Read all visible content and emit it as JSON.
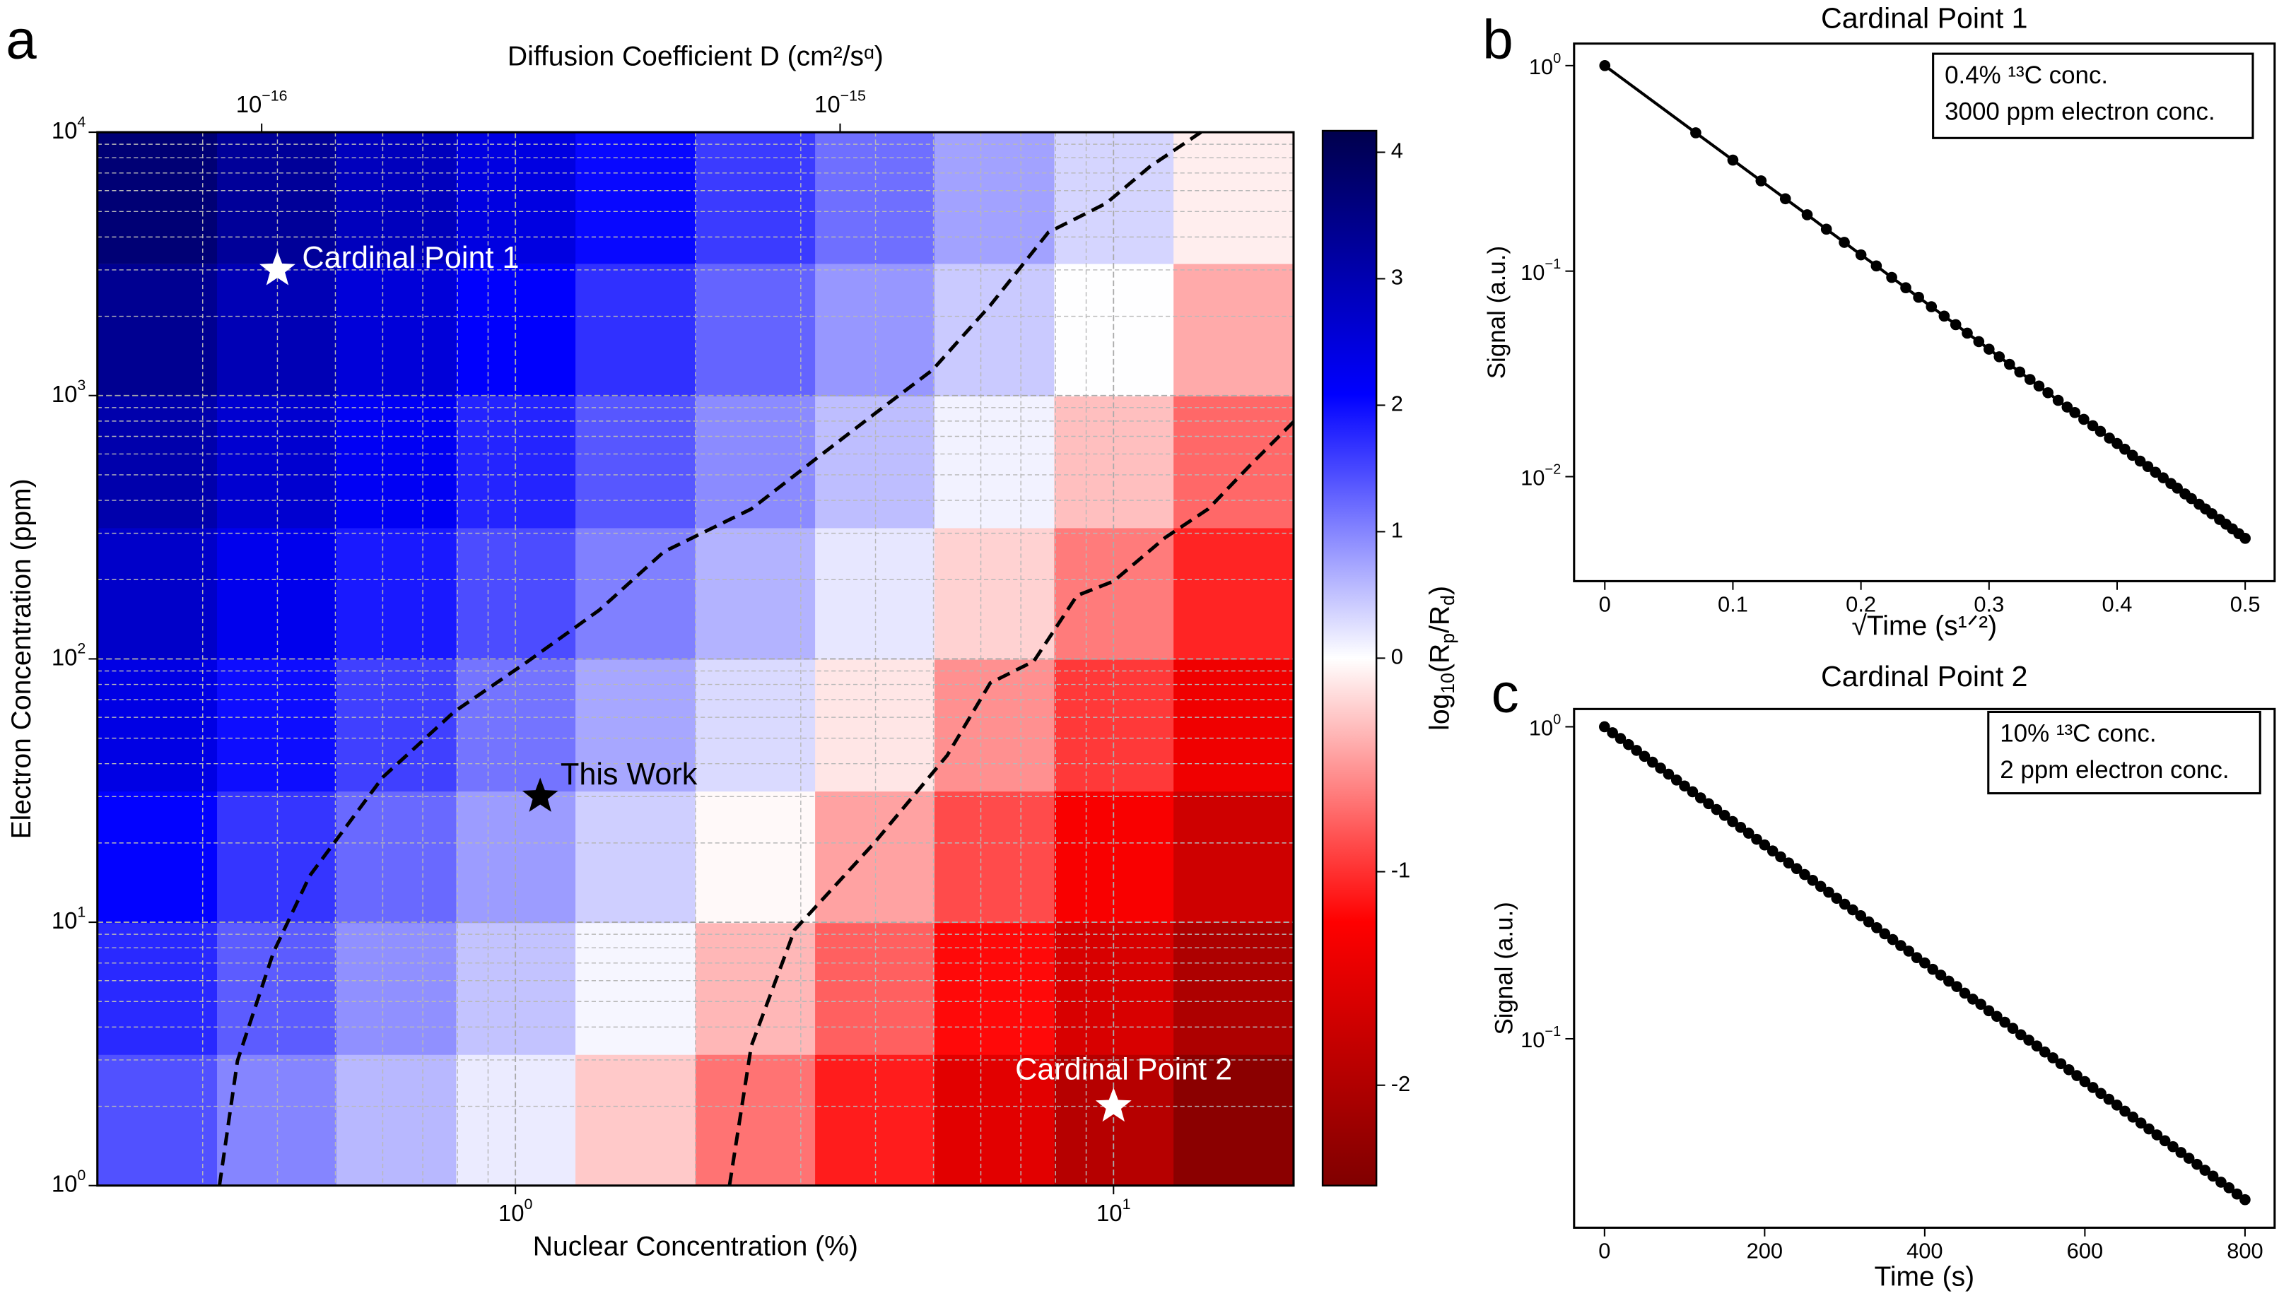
{
  "chart_data": [
    {
      "type": "heatmap",
      "panel_label": "a",
      "xlabel": "Nuclear Concentration (%)",
      "ylabel": "Electron Concentration (ppm)",
      "x2label": "Diffusion Coefficient D (cm²/sᵅ)",
      "xscale": "log",
      "yscale": "log",
      "xlim": [
        0.2,
        20
      ],
      "ylim": [
        1,
        10000
      ],
      "xticks": [
        {
          "value": 1,
          "label": "10",
          "exponent": "0"
        },
        {
          "value": 10,
          "label": "10",
          "exponent": "1"
        }
      ],
      "yticks": [
        {
          "value": 1,
          "label": "10",
          "exponent": "0"
        },
        {
          "value": 10,
          "label": "10",
          "exponent": "1"
        },
        {
          "value": 100,
          "label": "10",
          "exponent": "2"
        },
        {
          "value": 1000,
          "label": "10",
          "exponent": "3"
        },
        {
          "value": 10000,
          "label": "10",
          "exponent": "4"
        }
      ],
      "xminorticks": [
        0.3,
        0.4,
        0.5,
        0.6,
        0.7,
        0.8,
        0.9,
        2,
        3,
        4,
        5,
        6,
        7,
        8,
        9
      ],
      "yminorticks": [
        2,
        3,
        4,
        5,
        6,
        7,
        8,
        9,
        20,
        30,
        40,
        50,
        60,
        70,
        80,
        90,
        200,
        300,
        400,
        500,
        600,
        700,
        800,
        900,
        2000,
        3000,
        4000,
        5000,
        6000,
        7000,
        8000,
        9000
      ],
      "grid": true,
      "x2lim": [
        5.2e-17,
        6.08e-15
      ],
      "x2ticks": [
        {
          "value": 1e-16,
          "label": "10",
          "exponent": "−16"
        },
        {
          "value": 1e-15,
          "label": "10",
          "exponent": "−15"
        }
      ],
      "xbins": [
        0.2,
        0.317,
        0.502,
        0.796,
        1.26,
        2,
        3.17,
        5.02,
        7.96,
        12.6,
        20
      ],
      "ybins": [
        1,
        3.16,
        10,
        31.6,
        100,
        316,
        1000,
        3160,
        10000
      ],
      "z": [
        [
          1.42,
          1.0,
          0.58,
          0.16,
          -0.26,
          -0.68,
          -1.1,
          -1.52,
          -1.94,
          -2.36
        ],
        [
          1.75,
          1.33,
          0.91,
          0.49,
          0.07,
          -0.35,
          -0.77,
          -1.19,
          -1.61,
          -2.03
        ],
        [
          2.07,
          1.65,
          1.23,
          0.81,
          0.39,
          -0.03,
          -0.45,
          -0.87,
          -1.29,
          -1.71
        ],
        [
          2.4,
          1.98,
          1.56,
          1.14,
          0.72,
          0.3,
          -0.12,
          -0.54,
          -0.96,
          -1.38
        ],
        [
          2.72,
          2.3,
          1.88,
          1.46,
          1.04,
          0.62,
          0.2,
          -0.22,
          -0.64,
          -1.06
        ],
        [
          3.05,
          2.63,
          2.21,
          1.79,
          1.37,
          0.95,
          0.53,
          0.11,
          -0.31,
          -0.73
        ],
        [
          3.37,
          2.95,
          2.53,
          2.11,
          1.69,
          1.27,
          0.85,
          0.43,
          0.01,
          -0.41
        ],
        [
          3.7,
          3.28,
          2.86,
          2.44,
          2.02,
          1.6,
          1.18,
          0.76,
          0.34,
          -0.08
        ]
      ],
      "colormap": "seismic_r",
      "clim": [
        -2.47,
        4.17
      ],
      "norm_center": 0,
      "colorbar_ticks": [
        -2,
        -1,
        0,
        1,
        2,
        3,
        4
      ],
      "colorbar_label": [
        "log",
        "10",
        "(R",
        "p",
        "/R",
        "d",
        ")"
      ],
      "contours": [
        {
          "color": "#000000",
          "x": [
            0.32,
            0.343,
            0.394,
            0.453,
            0.6,
            0.79,
            1.05,
            1.38,
            1.77,
            2.48,
            3.19,
            3.98,
            4.98,
            6.22,
            7.78,
            9.72,
            11.5,
            14.0
          ],
          "y": [
            1,
            2.98,
            7.7,
            15,
            35.5,
            63,
            98,
            153,
            255,
            371,
            578,
            851,
            1250,
            2200,
            4170,
            5370,
            7400,
            10000
          ]
        },
        {
          "color": "#000000",
          "x": [
            2.28,
            2.48,
            2.93,
            3.98,
            5.27,
            6.22,
            7.36,
            8.69,
            10,
            12.2,
            14.4,
            17.0,
            20
          ],
          "y": [
            1,
            3.39,
            9.35,
            20,
            43,
            81,
            98,
            174,
            197,
            289,
            371,
            550,
            795
          ]
        }
      ],
      "markers": [
        {
          "name": "Cardinal Point 1",
          "x": 0.4,
          "y": 3000,
          "color": "#ffffff"
        },
        {
          "name": "This Work",
          "x": 1.1,
          "y": 30,
          "color": "#000000"
        },
        {
          "name": "Cardinal Point 2",
          "x": 10,
          "y": 2,
          "color": "#ffffff"
        }
      ]
    },
    {
      "type": "line",
      "panel_label": "b",
      "title": "Cardinal Point 1",
      "xlabel": "√Time (s¹ᐟ²)",
      "ylabel": "Signal (a.u.)",
      "yscale": "log",
      "xlim": [
        -0.024,
        0.523
      ],
      "ylim": [
        0.0031,
        1.28
      ],
      "xticks": [
        0,
        0.1,
        0.2,
        0.3,
        0.4,
        0.5
      ],
      "yticks": [
        {
          "value": 1,
          "label": "10",
          "exponent": "0"
        },
        {
          "value": 0.1,
          "label": "10",
          "exponent": "−1"
        },
        {
          "value": 0.01,
          "label": "10",
          "exponent": "−2"
        }
      ],
      "annotation": [
        "0.4% ¹³C conc.",
        "3000 ppm electron conc."
      ],
      "x": [
        0,
        0.071,
        0.1,
        0.122,
        0.141,
        0.158,
        0.173,
        0.187,
        0.2,
        0.212,
        0.224,
        0.235,
        0.245,
        0.255,
        0.265,
        0.274,
        0.283,
        0.292,
        0.3,
        0.308,
        0.316,
        0.324,
        0.332,
        0.339,
        0.346,
        0.354,
        0.361,
        0.367,
        0.374,
        0.381,
        0.387,
        0.394,
        0.4,
        0.406,
        0.412,
        0.418,
        0.424,
        0.43,
        0.436,
        0.442,
        0.447,
        0.453,
        0.458,
        0.464,
        0.469,
        0.474,
        0.48,
        0.485,
        0.49,
        0.495,
        0.5
      ],
      "series": [
        {
          "color": "#000000",
          "values": [
            1,
            0.471,
            0.347,
            0.275,
            0.225,
            0.188,
            0.16,
            0.138,
            0.12,
            0.106,
            0.0932,
            0.083,
            0.0746,
            0.0671,
            0.0604,
            0.0549,
            0.0499,
            0.0454,
            0.0417,
            0.0383,
            0.0352,
            0.0323,
            0.0297,
            0.0276,
            0.0256,
            0.0235,
            0.0218,
            0.0205,
            0.019,
            0.0177,
            0.0166,
            0.0154,
            0.0145,
            0.0136,
            0.0127,
            0.0119,
            0.0112,
            0.0105,
            0.00987,
            0.00926,
            0.00879,
            0.00824,
            0.00782,
            0.00734,
            0.00696,
            0.0066,
            0.00619,
            0.00587,
            0.00557,
            0.00528,
            0.00501
          ]
        }
      ]
    },
    {
      "type": "line",
      "panel_label": "c",
      "title": "Cardinal Point 2",
      "xlabel": "Time (s)",
      "ylabel": "Signal (a.u.)",
      "yscale": "log",
      "xlim": [
        -38,
        837
      ],
      "ylim": [
        0.0248,
        1.14
      ],
      "xticks": [
        0,
        200,
        400,
        600,
        800
      ],
      "yticks": [
        {
          "value": 1,
          "label": "10",
          "exponent": "0"
        },
        {
          "value": 0.1,
          "label": "10",
          "exponent": "−1"
        }
      ],
      "annotation": [
        "10% ¹³C conc.",
        "2 ppm electron conc."
      ],
      "x": [
        0,
        10,
        20,
        30,
        40,
        50,
        60,
        70,
        80,
        90,
        100,
        110,
        120,
        130,
        140,
        150,
        160,
        170,
        180,
        190,
        200,
        210,
        220,
        230,
        240,
        250,
        260,
        270,
        280,
        290,
        300,
        310,
        320,
        330,
        340,
        350,
        360,
        370,
        380,
        390,
        400,
        410,
        420,
        430,
        440,
        450,
        460,
        470,
        480,
        490,
        500,
        510,
        520,
        530,
        540,
        550,
        560,
        570,
        580,
        590,
        600,
        610,
        620,
        630,
        640,
        650,
        660,
        670,
        680,
        690,
        700,
        710,
        720,
        730,
        740,
        750,
        760,
        770,
        780,
        790,
        800
      ],
      "series": [
        {
          "color": "#000000",
          "values": [
            1,
            0.957,
            0.917,
            0.877,
            0.84,
            0.804,
            0.77,
            0.737,
            0.705,
            0.675,
            0.646,
            0.619,
            0.592,
            0.567,
            0.543,
            0.52,
            0.497,
            0.476,
            0.456,
            0.436,
            0.418,
            0.4,
            0.383,
            0.366,
            0.351,
            0.336,
            0.322,
            0.308,
            0.295,
            0.282,
            0.27,
            0.259,
            0.248,
            0.237,
            0.227,
            0.217,
            0.208,
            0.199,
            0.191,
            0.182,
            0.175,
            0.167,
            0.16,
            0.153,
            0.147,
            0.14,
            0.134,
            0.129,
            0.123,
            0.118,
            0.113,
            0.108,
            0.103,
            0.099,
            0.0948,
            0.0907,
            0.0869,
            0.0832,
            0.0796,
            0.0762,
            0.0729,
            0.0698,
            0.0668,
            0.064,
            0.0613,
            0.0586,
            0.0561,
            0.0537,
            0.0514,
            0.0492,
            0.0471,
            0.0451,
            0.0432,
            0.0414,
            0.0396,
            0.0379,
            0.0363,
            0.0347,
            0.0333,
            0.0318,
            0.0305
          ]
        }
      ]
    }
  ]
}
